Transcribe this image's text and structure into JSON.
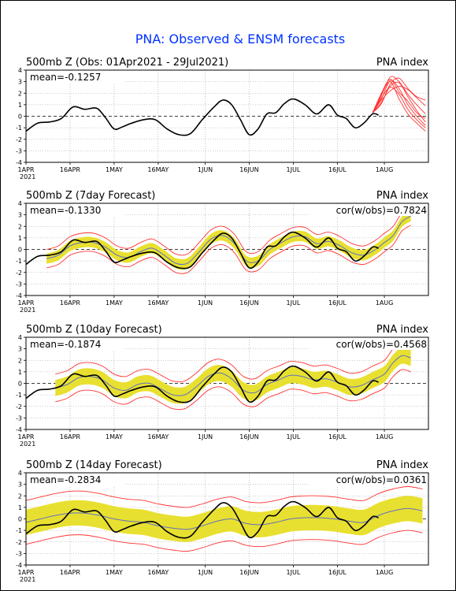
{
  "title": "PNA: Observed & ENSM forecasts",
  "colors": {
    "title": "#0033ff",
    "observed": "#000000",
    "members": "#ff3333",
    "spread": "#e8e030",
    "mean": "#6070c0"
  },
  "x_axis": {
    "ticks": [
      {
        "day": 0,
        "label": "1APR",
        "sub": "2021"
      },
      {
        "day": 15,
        "label": "16APR",
        "sub": ""
      },
      {
        "day": 30,
        "label": "1MAY",
        "sub": ""
      },
      {
        "day": 45,
        "label": "16MAY",
        "sub": ""
      },
      {
        "day": 61,
        "label": "1JUN",
        "sub": ""
      },
      {
        "day": 76,
        "label": "16JUN",
        "sub": ""
      },
      {
        "day": 91,
        "label": "1JUL",
        "sub": ""
      },
      {
        "day": 106,
        "label": "16JUL",
        "sub": ""
      },
      {
        "day": 122,
        "label": "1AUG",
        "sub": ""
      }
    ],
    "range": [
      0,
      137
    ]
  },
  "chart_data": [
    {
      "type": "line",
      "title": "500mb Z (Obs: 01Apr2021 - 29Jul2021)",
      "right_label": "PNA index",
      "mean_label": "mean=-0.1257",
      "cor_label": "",
      "ylim": [
        -4,
        4
      ],
      "yticks": [
        -4,
        -3,
        -2,
        -1,
        0,
        1,
        2,
        3,
        4
      ],
      "observed": {
        "x": [
          0,
          4,
          8,
          12,
          16,
          20,
          24,
          27,
          30,
          33,
          36,
          40,
          44,
          48,
          52,
          56,
          60,
          64,
          67,
          70,
          73,
          76,
          79,
          82,
          85,
          88,
          91,
          95,
          99,
          103,
          106,
          109,
          112,
          115,
          118,
          120
        ],
        "y": [
          -1.3,
          -0.6,
          -0.5,
          -0.2,
          0.8,
          0.6,
          0.7,
          -0.1,
          -1.1,
          -0.9,
          -0.6,
          -0.3,
          -0.3,
          -1.1,
          -1.6,
          -1.5,
          -0.3,
          0.8,
          1.4,
          1.0,
          -0.3,
          -1.6,
          -1.1,
          0.2,
          0.3,
          1.1,
          1.5,
          1.0,
          0.2,
          1.0,
          0.1,
          -0.2,
          -1.0,
          -0.6,
          0.2,
          0.1
        ]
      },
      "members": [
        {
          "x": [
            118,
            121,
            124,
            127,
            130,
            133,
            136
          ],
          "y": [
            0.3,
            1.5,
            3.1,
            2.4,
            1.0,
            0.0,
            -0.8
          ]
        },
        {
          "x": [
            118,
            121,
            124,
            127,
            130,
            133,
            136
          ],
          "y": [
            0.3,
            1.8,
            3.4,
            3.0,
            1.9,
            1.0,
            0.2
          ]
        },
        {
          "x": [
            118,
            121,
            124,
            127,
            130,
            133,
            136
          ],
          "y": [
            0.3,
            1.2,
            2.6,
            2.9,
            1.7,
            0.5,
            -0.5
          ]
        },
        {
          "x": [
            118,
            121,
            124,
            127,
            130,
            133,
            136
          ],
          "y": [
            0.3,
            1.9,
            3.0,
            1.5,
            0.2,
            -0.6,
            -1.3
          ]
        },
        {
          "x": [
            118,
            121,
            124,
            127,
            130,
            133,
            136
          ],
          "y": [
            0.3,
            1.4,
            2.2,
            2.6,
            2.3,
            1.6,
            0.9
          ]
        },
        {
          "x": [
            118,
            121,
            124,
            127,
            130,
            133,
            136
          ],
          "y": [
            0.3,
            2.0,
            3.2,
            2.1,
            1.3,
            0.3,
            -0.2
          ]
        },
        {
          "x": [
            118,
            121,
            124,
            127,
            130,
            133,
            136
          ],
          "y": [
            0.3,
            1.1,
            2.8,
            3.3,
            2.4,
            1.7,
            1.4
          ]
        },
        {
          "x": [
            118,
            121,
            124,
            127,
            130,
            133,
            136
          ],
          "y": [
            0.3,
            1.6,
            2.5,
            1.9,
            0.6,
            -0.3,
            -1.0
          ]
        }
      ]
    },
    {
      "type": "line",
      "title": "500mb Z (7day Forecast)",
      "right_label": "PNA index",
      "mean_label": "mean=-0.1330",
      "cor_label": "cor(w/obs)=0.7824",
      "ylim": [
        -4,
        4
      ],
      "yticks": [
        -4,
        -3,
        -2,
        -1,
        0,
        1,
        2,
        3,
        4
      ],
      "observed": {
        "x": [
          0,
          4,
          8,
          12,
          16,
          20,
          24,
          27,
          30,
          33,
          36,
          40,
          44,
          48,
          52,
          56,
          60,
          64,
          67,
          70,
          73,
          76,
          79,
          82,
          85,
          88,
          91,
          95,
          99,
          103,
          106,
          109,
          112,
          115,
          118,
          120
        ],
        "y": [
          -1.3,
          -0.6,
          -0.5,
          -0.2,
          0.8,
          0.6,
          0.7,
          -0.1,
          -1.1,
          -0.9,
          -0.6,
          -0.3,
          -0.3,
          -1.1,
          -1.6,
          -1.5,
          -0.3,
          0.8,
          1.4,
          1.0,
          -0.3,
          -1.6,
          -1.1,
          0.2,
          0.3,
          1.1,
          1.5,
          1.0,
          0.2,
          1.0,
          0.1,
          -0.2,
          -1.0,
          -0.6,
          0.2,
          0.1
        ]
      },
      "forecast_mean": {
        "x": [
          7,
          11,
          15,
          19,
          23,
          27,
          31,
          35,
          39,
          43,
          47,
          51,
          55,
          59,
          63,
          67,
          71,
          75,
          79,
          83,
          87,
          91,
          95,
          99,
          103,
          107,
          111,
          115,
          119,
          122,
          125,
          128,
          131
        ],
        "y": [
          -0.8,
          -0.5,
          0.3,
          0.6,
          0.6,
          0.2,
          -0.5,
          -0.7,
          -0.2,
          0.1,
          -0.5,
          -1.2,
          -1.2,
          -0.2,
          0.9,
          1.2,
          0.5,
          -1.0,
          -1.0,
          0.0,
          0.6,
          1.1,
          1.1,
          0.5,
          0.7,
          0.3,
          -0.3,
          -0.5,
          0.0,
          0.6,
          1.2,
          2.4,
          2.9
        ]
      },
      "spread_halfwidth": 0.45,
      "envelope_halfwidth": 0.8
    },
    {
      "type": "line",
      "title": "500mb Z (10day Forecast)",
      "right_label": "PNA index",
      "mean_label": "mean=-0.1874",
      "cor_label": "cor(w/obs)=0.4568",
      "ylim": [
        -4,
        4
      ],
      "yticks": [
        -4,
        -3,
        -2,
        -1,
        0,
        1,
        2,
        3,
        4
      ],
      "observed": {
        "x": [
          0,
          4,
          8,
          12,
          16,
          20,
          24,
          27,
          30,
          33,
          36,
          40,
          44,
          48,
          52,
          56,
          60,
          64,
          67,
          70,
          73,
          76,
          79,
          82,
          85,
          88,
          91,
          95,
          99,
          103,
          106,
          109,
          112,
          115,
          118,
          120
        ],
        "y": [
          -1.3,
          -0.6,
          -0.5,
          -0.2,
          0.8,
          0.6,
          0.7,
          -0.1,
          -1.1,
          -0.9,
          -0.6,
          -0.3,
          -0.3,
          -1.1,
          -1.6,
          -1.5,
          -0.3,
          0.8,
          1.4,
          1.0,
          -0.3,
          -1.6,
          -1.1,
          0.2,
          0.3,
          1.1,
          1.5,
          1.0,
          0.2,
          1.0,
          0.1,
          -0.2,
          -1.0,
          -0.6,
          0.2,
          0.1
        ]
      },
      "forecast_mean": {
        "x": [
          10,
          14,
          18,
          22,
          26,
          30,
          34,
          38,
          42,
          46,
          50,
          54,
          58,
          62,
          66,
          70,
          74,
          78,
          82,
          86,
          90,
          94,
          98,
          102,
          106,
          110,
          114,
          118,
          122,
          125,
          128,
          131
        ],
        "y": [
          -0.4,
          -0.1,
          0.5,
          0.6,
          0.3,
          -0.4,
          -0.6,
          -0.1,
          0.0,
          -0.5,
          -1.0,
          -1.0,
          -0.3,
          0.6,
          0.9,
          0.4,
          -0.6,
          -0.8,
          -0.1,
          0.3,
          0.7,
          0.6,
          0.3,
          0.4,
          0.1,
          -0.3,
          -0.2,
          0.3,
          0.8,
          1.8,
          2.4,
          2.2
        ]
      },
      "spread_halfwidth": 0.7,
      "envelope_halfwidth": 1.2
    },
    {
      "type": "line",
      "title": "500mb Z (14day Forecast)",
      "right_label": "PNA index",
      "mean_label": "mean=-0.2834",
      "cor_label": "cor(w/obs)=0.0361",
      "ylim": [
        -4,
        4
      ],
      "yticks": [
        -4,
        -3,
        -2,
        -1,
        0,
        1,
        2,
        3,
        4
      ],
      "observed": {
        "x": [
          0,
          4,
          8,
          12,
          16,
          20,
          24,
          27,
          30,
          33,
          36,
          40,
          44,
          48,
          52,
          56,
          60,
          64,
          67,
          70,
          73,
          76,
          79,
          82,
          85,
          88,
          91,
          95,
          99,
          103,
          106,
          109,
          112,
          115,
          118,
          120
        ],
        "y": [
          -1.3,
          -0.6,
          -0.5,
          -0.2,
          0.8,
          0.6,
          0.7,
          -0.1,
          -1.1,
          -0.9,
          -0.6,
          -0.3,
          -0.3,
          -1.1,
          -1.6,
          -1.5,
          -0.3,
          0.8,
          1.4,
          1.0,
          -0.3,
          -1.6,
          -1.1,
          0.2,
          0.3,
          1.1,
          1.5,
          1.0,
          0.2,
          1.0,
          0.1,
          -0.2,
          -1.0,
          -0.6,
          0.2,
          0.1
        ]
      },
      "forecast_mean": {
        "x": [
          0,
          5,
          10,
          15,
          20,
          25,
          30,
          35,
          40,
          45,
          50,
          55,
          60,
          65,
          70,
          75,
          80,
          85,
          90,
          95,
          100,
          105,
          110,
          115,
          120,
          125,
          130,
          135
        ],
        "y": [
          -0.3,
          0.0,
          0.3,
          0.5,
          0.5,
          0.3,
          0.0,
          -0.2,
          -0.3,
          -0.6,
          -0.8,
          -0.9,
          -0.6,
          -0.2,
          0.0,
          -0.4,
          -0.5,
          -0.3,
          0.0,
          0.1,
          0.1,
          0.0,
          -0.2,
          -0.3,
          0.3,
          0.7,
          0.9,
          0.7
        ]
      },
      "spread_halfwidth": 1.1,
      "envelope_halfwidth": 1.9
    }
  ]
}
